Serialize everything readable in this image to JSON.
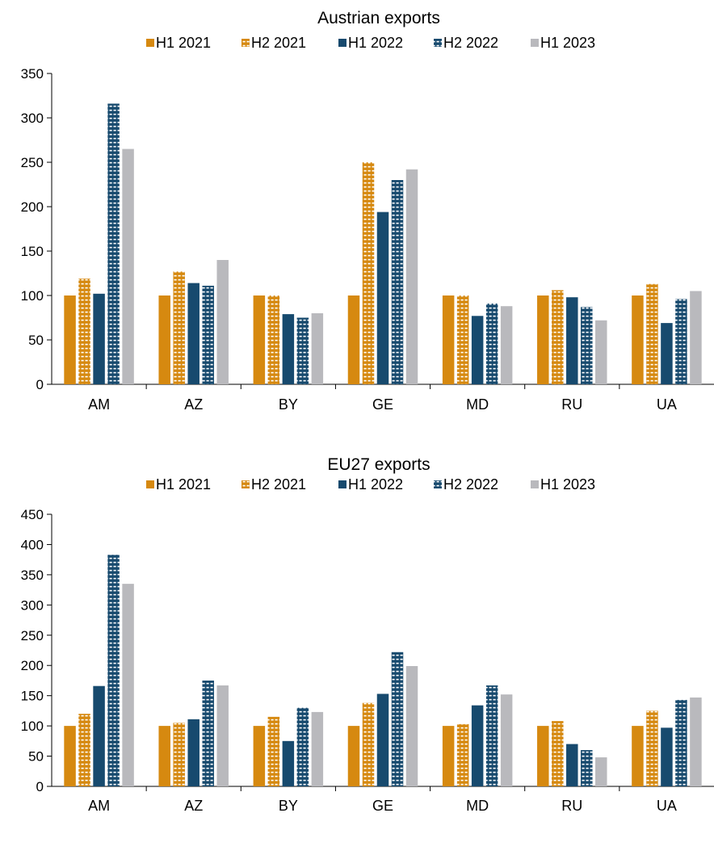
{
  "colors": {
    "H1 2021": "#d68910",
    "H2 2021": "#d68910",
    "H1 2022": "#174a6e",
    "H2 2022": "#174a6e",
    "H1 2023": "#b9b9bd"
  },
  "chart_data": [
    {
      "type": "bar",
      "title": "Austrian exports",
      "legend_position": "top",
      "grid": false,
      "categories": [
        "AM",
        "AZ",
        "BY",
        "GE",
        "MD",
        "RU",
        "UA"
      ],
      "ylim": [
        0,
        350
      ],
      "yticks": [
        0,
        50,
        100,
        150,
        200,
        250,
        300,
        350
      ],
      "series": [
        {
          "name": "H1 2021",
          "pattern": "solid",
          "values": [
            100,
            100,
            100,
            100,
            100,
            100,
            100
          ]
        },
        {
          "name": "H2 2021",
          "pattern": "dotted",
          "values": [
            119,
            127,
            100,
            250,
            100,
            106,
            113
          ]
        },
        {
          "name": "H1 2022",
          "pattern": "solid",
          "values": [
            102,
            114,
            79,
            194,
            77,
            98,
            69
          ]
        },
        {
          "name": "H2 2022",
          "pattern": "dotted",
          "values": [
            316,
            111,
            75,
            230,
            91,
            87,
            96
          ]
        },
        {
          "name": "H1 2023",
          "pattern": "solid",
          "values": [
            265,
            140,
            80,
            242,
            88,
            72,
            105
          ]
        }
      ]
    },
    {
      "type": "bar",
      "title": "EU27 exports",
      "legend_position": "top",
      "grid": false,
      "categories": [
        "AM",
        "AZ",
        "BY",
        "GE",
        "MD",
        "RU",
        "UA"
      ],
      "ylim": [
        0,
        450
      ],
      "yticks": [
        0,
        50,
        100,
        150,
        200,
        250,
        300,
        350,
        400,
        450
      ],
      "series": [
        {
          "name": "H1 2021",
          "pattern": "solid",
          "values": [
            100,
            100,
            100,
            100,
            100,
            100,
            100
          ]
        },
        {
          "name": "H2 2021",
          "pattern": "dotted",
          "values": [
            120,
            105,
            115,
            138,
            103,
            108,
            125
          ]
        },
        {
          "name": "H1 2022",
          "pattern": "solid",
          "values": [
            166,
            111,
            75,
            153,
            134,
            70,
            97
          ]
        },
        {
          "name": "H2 2022",
          "pattern": "dotted",
          "values": [
            383,
            175,
            130,
            222,
            167,
            60,
            143
          ]
        },
        {
          "name": "H1 2023",
          "pattern": "solid",
          "values": [
            335,
            167,
            123,
            199,
            152,
            48,
            147
          ]
        }
      ]
    }
  ]
}
